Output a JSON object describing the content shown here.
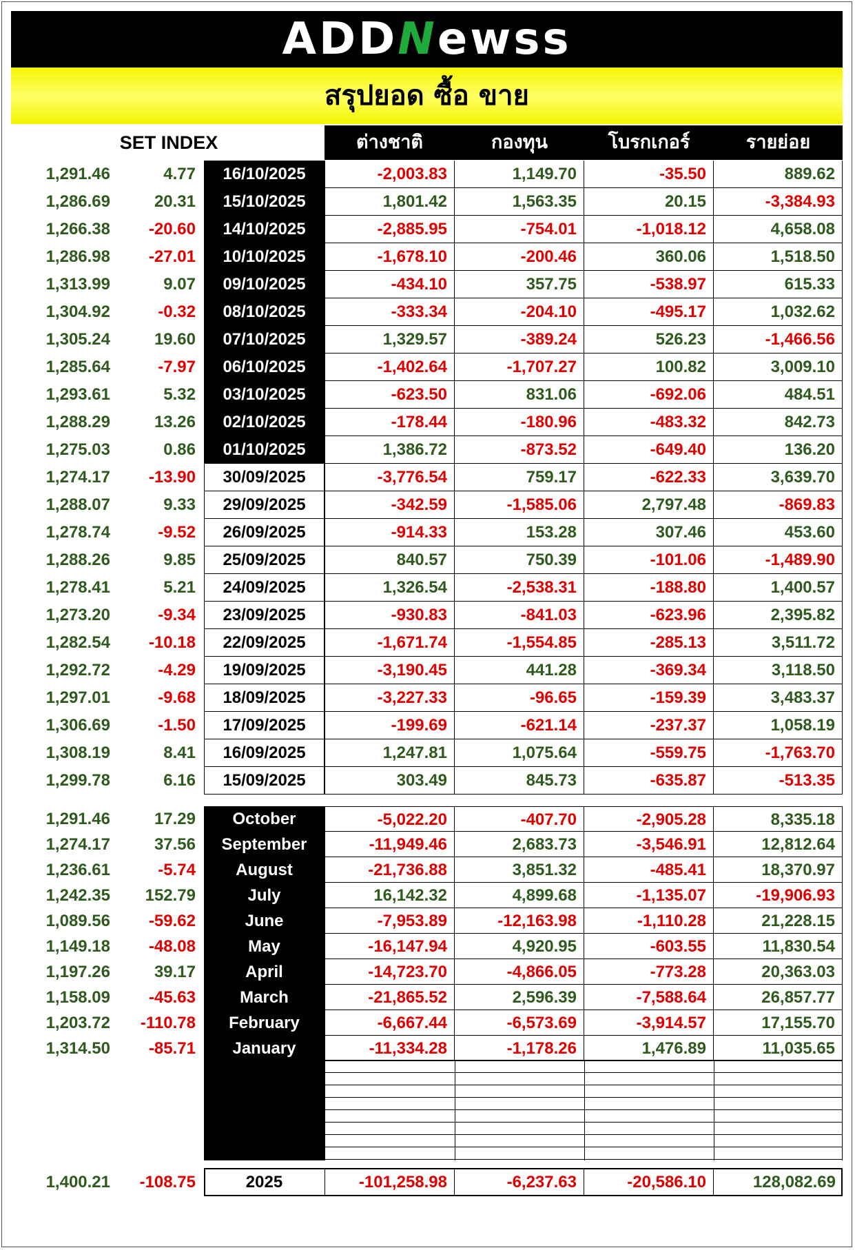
{
  "brand": {
    "part1": "ADD",
    "part2": "N",
    "part3": "ewss"
  },
  "title": "สรุปยอด ซื้อ ขาย",
  "set_label": "SET INDEX",
  "columns": [
    "ต่างชาติ",
    "กองทุน",
    "โบรกเกอร์",
    "รายย่อย"
  ],
  "daily": [
    {
      "index": "1,291.46",
      "chg": "4.77",
      "date": "16/10/2025",
      "v": [
        "-2,003.83",
        "1,149.70",
        "-35.50",
        "889.62"
      ]
    },
    {
      "index": "1,286.69",
      "chg": "20.31",
      "date": "15/10/2025",
      "v": [
        "1,801.42",
        "1,563.35",
        "20.15",
        "-3,384.93"
      ]
    },
    {
      "index": "1,266.38",
      "chg": "-20.60",
      "date": "14/10/2025",
      "v": [
        "-2,885.95",
        "-754.01",
        "-1,018.12",
        "4,658.08"
      ]
    },
    {
      "index": "1,286.98",
      "chg": "-27.01",
      "date": "10/10/2025",
      "v": [
        "-1,678.10",
        "-200.46",
        "360.06",
        "1,518.50"
      ]
    },
    {
      "index": "1,313.99",
      "chg": "9.07",
      "date": "09/10/2025",
      "v": [
        "-434.10",
        "357.75",
        "-538.97",
        "615.33"
      ]
    },
    {
      "index": "1,304.92",
      "chg": "-0.32",
      "date": "08/10/2025",
      "v": [
        "-333.34",
        "-204.10",
        "-495.17",
        "1,032.62"
      ]
    },
    {
      "index": "1,305.24",
      "chg": "19.60",
      "date": "07/10/2025",
      "v": [
        "1,329.57",
        "-389.24",
        "526.23",
        "-1,466.56"
      ]
    },
    {
      "index": "1,285.64",
      "chg": "-7.97",
      "date": "06/10/2025",
      "v": [
        "-1,402.64",
        "-1,707.27",
        "100.82",
        "3,009.10"
      ]
    },
    {
      "index": "1,293.61",
      "chg": "5.32",
      "date": "03/10/2025",
      "v": [
        "-623.50",
        "831.06",
        "-692.06",
        "484.51"
      ]
    },
    {
      "index": "1,288.29",
      "chg": "13.26",
      "date": "02/10/2025",
      "v": [
        "-178.44",
        "-180.96",
        "-483.32",
        "842.73"
      ]
    },
    {
      "index": "1,275.03",
      "chg": "0.86",
      "date": "01/10/2025",
      "v": [
        "1,386.72",
        "-873.52",
        "-649.40",
        "136.20"
      ]
    },
    {
      "index": "1,274.17",
      "chg": "-13.90",
      "date": "30/09/2025",
      "v": [
        "-3,776.54",
        "759.17",
        "-622.33",
        "3,639.70"
      ]
    },
    {
      "index": "1,288.07",
      "chg": "9.33",
      "date": "29/09/2025",
      "v": [
        "-342.59",
        "-1,585.06",
        "2,797.48",
        "-869.83"
      ]
    },
    {
      "index": "1,278.74",
      "chg": "-9.52",
      "date": "26/09/2025",
      "v": [
        "-914.33",
        "153.28",
        "307.46",
        "453.60"
      ]
    },
    {
      "index": "1,288.26",
      "chg": "9.85",
      "date": "25/09/2025",
      "v": [
        "840.57",
        "750.39",
        "-101.06",
        "-1,489.90"
      ]
    },
    {
      "index": "1,278.41",
      "chg": "5.21",
      "date": "24/09/2025",
      "v": [
        "1,326.54",
        "-2,538.31",
        "-188.80",
        "1,400.57"
      ]
    },
    {
      "index": "1,273.20",
      "chg": "-9.34",
      "date": "23/09/2025",
      "v": [
        "-930.83",
        "-841.03",
        "-623.96",
        "2,395.82"
      ]
    },
    {
      "index": "1,282.54",
      "chg": "-10.18",
      "date": "22/09/2025",
      "v": [
        "-1,671.74",
        "-1,554.85",
        "-285.13",
        "3,511.72"
      ]
    },
    {
      "index": "1,292.72",
      "chg": "-4.29",
      "date": "19/09/2025",
      "v": [
        "-3,190.45",
        "441.28",
        "-369.34",
        "3,118.50"
      ]
    },
    {
      "index": "1,297.01",
      "chg": "-9.68",
      "date": "18/09/2025",
      "v": [
        "-3,227.33",
        "-96.65",
        "-159.39",
        "3,483.37"
      ]
    },
    {
      "index": "1,306.69",
      "chg": "-1.50",
      "date": "17/09/2025",
      "v": [
        "-199.69",
        "-621.14",
        "-237.37",
        "1,058.19"
      ]
    },
    {
      "index": "1,308.19",
      "chg": "8.41",
      "date": "16/09/2025",
      "v": [
        "1,247.81",
        "1,075.64",
        "-559.75",
        "-1,763.70"
      ]
    },
    {
      "index": "1,299.78",
      "chg": "6.16",
      "date": "15/09/2025",
      "v": [
        "303.49",
        "845.73",
        "-635.87",
        "-513.35"
      ]
    }
  ],
  "monthly": [
    {
      "index": "1,291.46",
      "chg": "17.29",
      "month": "October",
      "v": [
        "-5,022.20",
        "-407.70",
        "-2,905.28",
        "8,335.18"
      ]
    },
    {
      "index": "1,274.17",
      "chg": "37.56",
      "month": "September",
      "v": [
        "-11,949.46",
        "2,683.73",
        "-3,546.91",
        "12,812.64"
      ]
    },
    {
      "index": "1,236.61",
      "chg": "-5.74",
      "month": "August",
      "v": [
        "-21,736.88",
        "3,851.32",
        "-485.41",
        "18,370.97"
      ]
    },
    {
      "index": "1,242.35",
      "chg": "152.79",
      "month": "July",
      "v": [
        "16,142.32",
        "4,899.68",
        "-1,135.07",
        "-19,906.93"
      ]
    },
    {
      "index": "1,089.56",
      "chg": "-59.62",
      "month": "June",
      "v": [
        "-7,953.89",
        "-12,163.98",
        "-1,110.28",
        "21,228.15"
      ]
    },
    {
      "index": "1,149.18",
      "chg": "-48.08",
      "month": "May",
      "v": [
        "-16,147.94",
        "4,920.95",
        "-603.55",
        "11,830.54"
      ]
    },
    {
      "index": "1,197.26",
      "chg": "39.17",
      "month": "April",
      "v": [
        "-14,723.70",
        "-4,866.05",
        "-773.28",
        "20,363.03"
      ]
    },
    {
      "index": "1,158.09",
      "chg": "-45.63",
      "month": "March",
      "v": [
        "-21,865.52",
        "2,596.39",
        "-7,588.64",
        "26,857.77"
      ]
    },
    {
      "index": "1,203.72",
      "chg": "-110.78",
      "month": "February",
      "v": [
        "-6,667.44",
        "-6,573.69",
        "-3,914.57",
        "17,155.70"
      ]
    },
    {
      "index": "1,314.50",
      "chg": "-85.71",
      "month": "January",
      "v": [
        "-11,334.28",
        "-1,178.26",
        "1,476.89",
        "11,035.65"
      ]
    }
  ],
  "total": {
    "index": "1,400.21",
    "chg": "-108.75",
    "label": "2025",
    "v": [
      "-101,258.98",
      "-6,237.63",
      "-20,586.10",
      "128,082.69"
    ]
  },
  "colors": {
    "positive": "#2f5a1e",
    "negative": "#e00000",
    "header_bg": "#000000",
    "title_bg": "#f5f500",
    "brand_accent": "#1faa3c"
  }
}
